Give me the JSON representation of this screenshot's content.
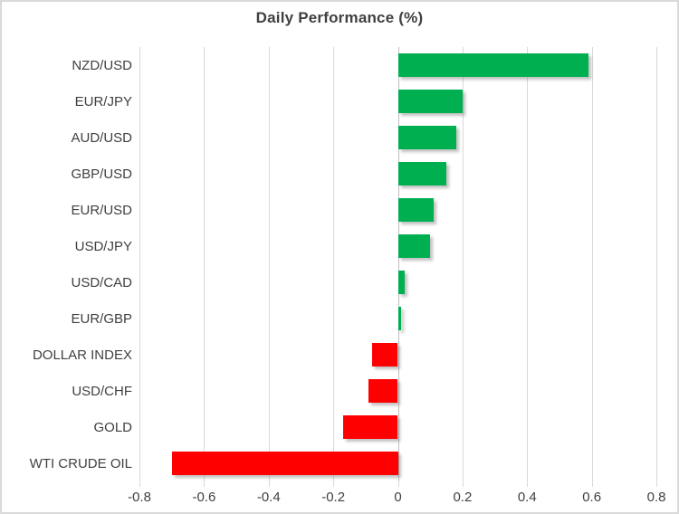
{
  "chart_data": {
    "type": "bar",
    "orientation": "horizontal",
    "title": "Daily Performance (%)",
    "categories": [
      "NZD/USD",
      "EUR/JPY",
      "AUD/USD",
      "GBP/USD",
      "EUR/USD",
      "USD/JPY",
      "USD/CAD",
      "EUR/GBP",
      "DOLLAR INDEX",
      "USD/CHF",
      "GOLD",
      "WTI CRUDE OIL"
    ],
    "values": [
      0.59,
      0.2,
      0.18,
      0.15,
      0.11,
      0.1,
      0.02,
      0.01,
      -0.08,
      -0.09,
      -0.17,
      -0.7
    ],
    "xlim": [
      -0.8,
      0.8
    ],
    "x_ticks": [
      -0.8,
      -0.6,
      -0.4,
      -0.2,
      0,
      0.2,
      0.4,
      0.6,
      0.8
    ],
    "x_tick_labels": [
      "-0.8",
      "-0.6",
      "-0.4",
      "-0.2",
      "0",
      "0.2",
      "0.4",
      "0.6",
      "0.8"
    ],
    "grid": true,
    "legend": false,
    "ylabel": "",
    "xlabel": "",
    "colors": {
      "positive": "#00B050",
      "negative": "#FF0000",
      "gridline": "#D9D9D9",
      "zero_axis": "#BFBFBF",
      "text": "#404040",
      "frame_border": "#D9D9D9"
    }
  }
}
